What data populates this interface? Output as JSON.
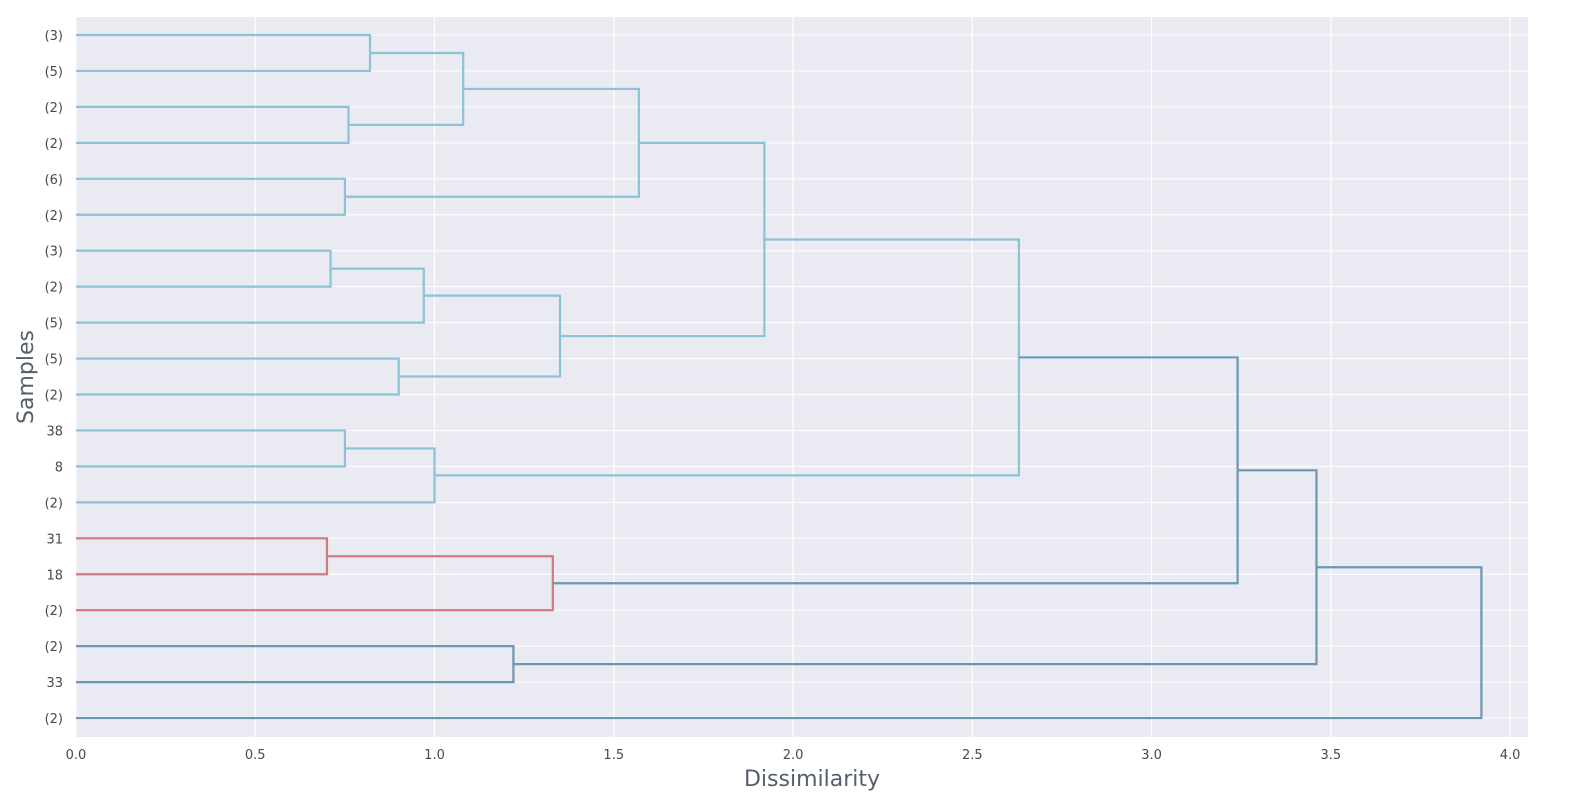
{
  "chart_data": {
    "type": "dendrogram",
    "orientation": "horizontal",
    "xlabel": "Dissimilarity",
    "ylabel": "Samples",
    "xlim": [
      0,
      4.05
    ],
    "x_ticks": [
      "0.0",
      "0.5",
      "1.0",
      "1.5",
      "2.0",
      "2.5",
      "3.0",
      "3.5",
      "4.0"
    ],
    "x_tick_values": [
      0,
      0.5,
      1.0,
      1.5,
      2.0,
      2.5,
      3.0,
      3.5,
      4.0
    ],
    "grid": true,
    "leaf_labels": [
      "(3)",
      "(5)",
      "(2)",
      "(2)",
      "(6)",
      "(2)",
      "(3)",
      "(2)",
      "(5)",
      "(5)",
      "(2)",
      "38",
      "8",
      "(2)",
      "31",
      "18",
      "(2)",
      "(2)",
      "33",
      "(2)"
    ],
    "colors": {
      "background": "#eaeaf2",
      "grid": "#ffffff",
      "cluster_light": "#8cc2d6",
      "cluster_red": "#d07b80",
      "cluster_dark": "#6b97b3"
    },
    "merges": [
      {
        "id": 0,
        "children": [
          0,
          1
        ],
        "children_are_leaves": [
          true,
          true
        ],
        "height": 0.82,
        "color": "cluster_light"
      },
      {
        "id": 1,
        "children": [
          2,
          3
        ],
        "children_are_leaves": [
          true,
          true
        ],
        "height": 0.76,
        "color": "cluster_light"
      },
      {
        "id": 2,
        "children": [
          0,
          1
        ],
        "children_are_leaves": [
          false,
          false
        ],
        "height": 1.08,
        "color": "cluster_light"
      },
      {
        "id": 3,
        "children": [
          4,
          5
        ],
        "children_are_leaves": [
          true,
          true
        ],
        "height": 0.75,
        "color": "cluster_light"
      },
      {
        "id": 4,
        "children": [
          2,
          3
        ],
        "children_are_leaves": [
          false,
          false
        ],
        "height": 1.57,
        "color": "cluster_light"
      },
      {
        "id": 5,
        "children": [
          6,
          7
        ],
        "children_are_leaves": [
          true,
          true
        ],
        "height": 0.71,
        "color": "cluster_light"
      },
      {
        "id": 6,
        "children": [
          5,
          8
        ],
        "children_are_leaves": [
          false,
          true
        ],
        "height": 0.97,
        "color": "cluster_light"
      },
      {
        "id": 7,
        "children": [
          9,
          10
        ],
        "children_are_leaves": [
          true,
          true
        ],
        "height": 0.9,
        "color": "cluster_light"
      },
      {
        "id": 8,
        "children": [
          6,
          7
        ],
        "children_are_leaves": [
          false,
          false
        ],
        "height": 1.35,
        "color": "cluster_light"
      },
      {
        "id": 9,
        "children": [
          4,
          8
        ],
        "children_are_leaves": [
          false,
          false
        ],
        "height": 1.92,
        "color": "cluster_light"
      },
      {
        "id": 10,
        "children": [
          11,
          12
        ],
        "children_are_leaves": [
          true,
          true
        ],
        "height": 0.75,
        "color": "cluster_light"
      },
      {
        "id": 11,
        "children": [
          10,
          13
        ],
        "children_are_leaves": [
          false,
          true
        ],
        "height": 1.0,
        "color": "cluster_light"
      },
      {
        "id": 12,
        "children": [
          9,
          11
        ],
        "children_are_leaves": [
          false,
          false
        ],
        "height": 2.63,
        "color": "cluster_light"
      },
      {
        "id": 13,
        "children": [
          14,
          15
        ],
        "children_are_leaves": [
          true,
          true
        ],
        "height": 0.7,
        "color": "cluster_red"
      },
      {
        "id": 14,
        "children": [
          13,
          16
        ],
        "children_are_leaves": [
          false,
          true
        ],
        "height": 1.33,
        "color": "cluster_red"
      },
      {
        "id": 15,
        "children": [
          12,
          14
        ],
        "children_are_leaves": [
          false,
          false
        ],
        "height": 3.24,
        "color": "cluster_dark"
      },
      {
        "id": 16,
        "children": [
          17,
          18
        ],
        "children_are_leaves": [
          true,
          true
        ],
        "height": 1.22,
        "color": "cluster_dark"
      },
      {
        "id": 17,
        "children": [
          15,
          16
        ],
        "children_are_leaves": [
          false,
          false
        ],
        "height": 3.46,
        "color": "cluster_dark"
      },
      {
        "id": 18,
        "children": [
          17,
          19
        ],
        "children_are_leaves": [
          false,
          true
        ],
        "height": 3.92,
        "color": "cluster_dark"
      }
    ]
  }
}
